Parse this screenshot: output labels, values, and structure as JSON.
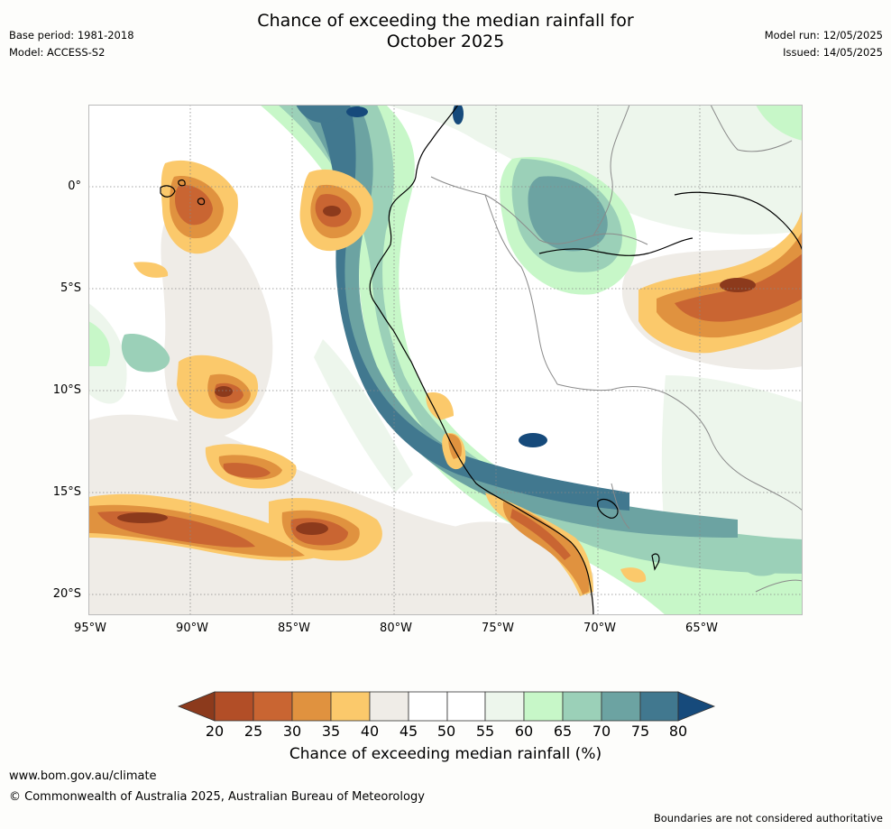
{
  "header": {
    "title_line1": "Chance of exceeding the median rainfall for",
    "title_line2": "October 2025",
    "base_period": "Base period: 1981-2018",
    "model": "Model: ACCESS-S2",
    "model_run": "Model run: 12/05/2025",
    "issued": "Issued: 14/05/2025"
  },
  "map": {
    "lat_labels": [
      "0°",
      "5°S",
      "10°S",
      "15°S",
      "20°S"
    ],
    "lon_labels": [
      "95°W",
      "90°W",
      "85°W",
      "80°W",
      "75°W",
      "70°W",
      "65°W"
    ],
    "extent": {
      "lon_min": -95,
      "lon_max": -60,
      "lat_min": -21,
      "lat_max": 4
    }
  },
  "colorbar": {
    "ticks": [
      "20",
      "25",
      "30",
      "35",
      "40",
      "45",
      "50",
      "55",
      "60",
      "65",
      "70",
      "75",
      "80"
    ],
    "colors": [
      "#8c3a1c",
      "#b24e27",
      "#c96532",
      "#e0923f",
      "#fbc96b",
      "#efece7",
      "#ffffff",
      "#ffffff",
      "#edf6ec",
      "#c7f7c8",
      "#9bd0b8",
      "#6ca3a2",
      "#41788f",
      "#164a7b"
    ],
    "label": "Chance of exceeding median rainfall (%)"
  },
  "footer": {
    "website": "www.bom.gov.au/climate",
    "copyright": "© Commonwealth of Australia 2025, Australian Bureau of Meteorology",
    "disclaimer": "Boundaries are not considered authoritative"
  }
}
